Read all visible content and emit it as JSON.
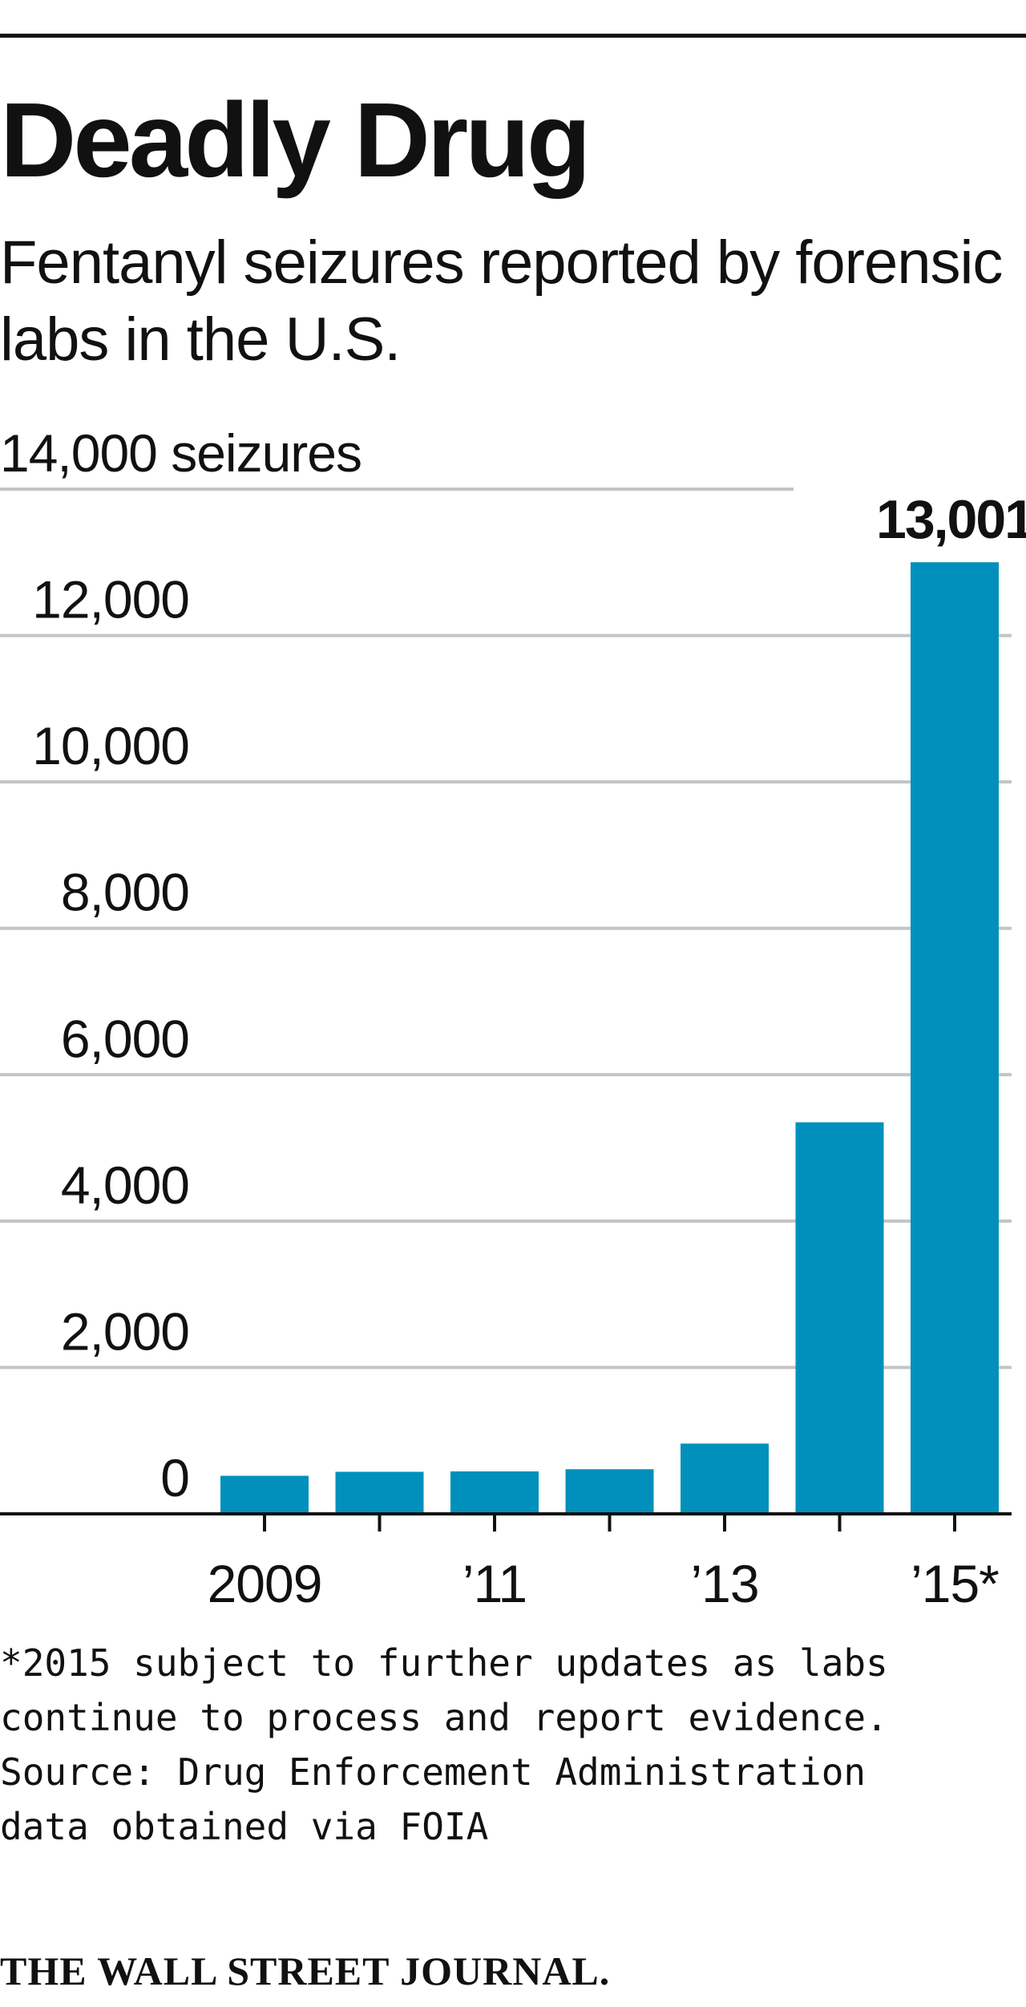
{
  "headline": "Deadly Drug",
  "subtitle": "Fentanyl seizures reported by forensic labs in the U.S.",
  "chart_data": {
    "type": "bar",
    "title": "Deadly Drug",
    "subtitle": "Fentanyl seizures reported by forensic labs in the U.S.",
    "categories": [
      "2009",
      "2010",
      "2011",
      "2012",
      "2013",
      "2014",
      "2015"
    ],
    "x_tick_labels": [
      "2009",
      "’11",
      "’13",
      "’15*"
    ],
    "x_tick_label_categories": [
      "2009",
      "2011",
      "2013",
      "2015"
    ],
    "values": [
      520,
      575,
      580,
      610,
      960,
      5350,
      13001
    ],
    "highlight_label": "13,001",
    "highlight_category": "2015",
    "ylim": [
      0,
      14000
    ],
    "y_ticks": [
      0,
      2000,
      4000,
      6000,
      8000,
      10000,
      12000,
      14000
    ],
    "y_tick_labels": [
      "0",
      "2,000",
      "4,000",
      "6,000",
      "8,000",
      "10,000",
      "12,000",
      "14,000 seizures"
    ],
    "grid": true,
    "bar_color": "#0090bb",
    "grid_color": "#c4c4c4",
    "axis_color": "#111111"
  },
  "footnote": {
    "lines": [
      "*2015 subject to further updates as labs",
      "continue to process and report evidence.",
      "Source: Drug Enforcement Administration",
      "data obtained via FOIA"
    ]
  },
  "credit": "THE WALL STREET JOURNAL."
}
